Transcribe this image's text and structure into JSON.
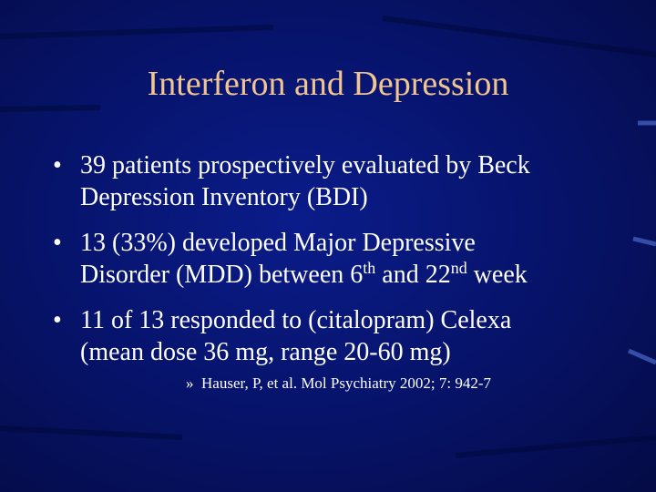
{
  "slide": {
    "title": "Interferon and Depression",
    "bullets": [
      {
        "lines": [
          [
            {
              "text": "39 patients prospectively evaluated by Beck"
            }
          ],
          [
            {
              "text": "Depression Inventory (BDI)"
            }
          ]
        ]
      },
      {
        "lines": [
          [
            {
              "text": "13 (33%) developed Major Depressive"
            }
          ],
          [
            {
              "text": "Disorder (MDD) between 6"
            },
            {
              "text": "th",
              "sup": true
            },
            {
              "text": " and 22"
            },
            {
              "text": "nd",
              "sup": true
            },
            {
              "text": " week"
            }
          ]
        ]
      },
      {
        "lines": [
          [
            {
              "text": "11 of 13 responded to (citalopram) Celexa"
            }
          ],
          [
            {
              "text": "(mean dose 36 mg, range 20-60 mg)"
            }
          ]
        ]
      }
    ],
    "reference": "Hauser, P, et al. Mol Psychiatry 2002; 7: 942-7"
  }
}
